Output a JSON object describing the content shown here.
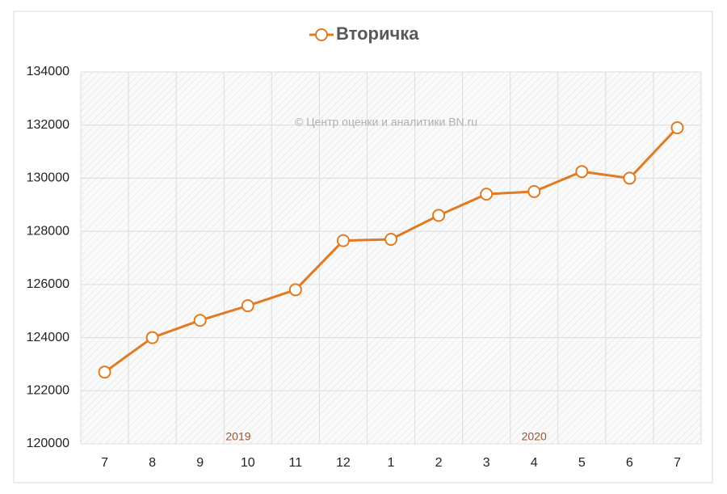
{
  "chart_data": {
    "type": "line",
    "categories": [
      "7",
      "8",
      "9",
      "10",
      "11",
      "12",
      "1",
      "2",
      "3",
      "4",
      "5",
      "6",
      "7"
    ],
    "year_labels": [
      "2019",
      "2020"
    ],
    "annotation": "© Центр оценки и аналитики BN.ru",
    "series": [
      {
        "name": "Вторичка",
        "color": "#e07a23",
        "values": [
          122700,
          124000,
          124650,
          125200,
          125800,
          127650,
          127700,
          128600,
          129400,
          129500,
          130250,
          130000,
          131900
        ]
      }
    ],
    "ylim": [
      120000,
      134000
    ],
    "yticks": [
      120000,
      122000,
      124000,
      126000,
      128000,
      130000,
      132000,
      134000
    ],
    "grid": true,
    "legend": "top"
  }
}
